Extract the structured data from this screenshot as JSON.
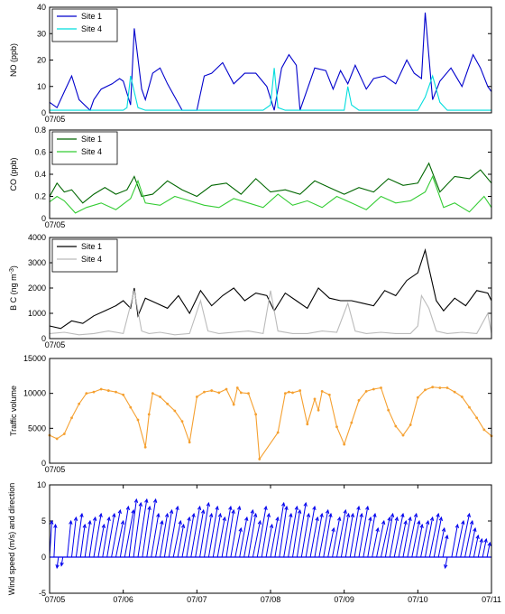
{
  "chart_data": [
    {
      "type": "line",
      "ylabel": "NO (ppb)",
      "ylim": [
        0,
        40
      ],
      "yticks": [
        "0",
        "10",
        "20",
        "30",
        "40"
      ],
      "xlim": [
        0,
        6
      ],
      "xticks": [
        {
          "x": 0,
          "label": "07/05"
        }
      ],
      "legend": {
        "placement": "top-left"
      },
      "series": [
        {
          "name": "Site 1",
          "color": "#0000cc",
          "x": [
            0,
            0.1,
            0.2,
            0.3,
            0.4,
            0.55,
            0.6,
            0.7,
            0.85,
            0.95,
            1,
            1.1,
            1.15,
            1.25,
            1.3,
            1.4,
            1.5,
            1.6,
            1.8,
            2.0,
            2.1,
            2.2,
            2.35,
            2.5,
            2.65,
            2.8,
            2.95,
            3.05,
            3.15,
            3.25,
            3.35,
            3.4,
            3.6,
            3.75,
            3.85,
            3.95,
            4.05,
            4.15,
            4.3,
            4.4,
            4.55,
            4.7,
            4.85,
            4.95,
            5.05,
            5.1,
            5.2,
            5.3,
            5.45,
            5.6,
            5.75,
            5.85,
            5.95,
            6.0
          ],
          "y": [
            4,
            2,
            8,
            14,
            5,
            1,
            5,
            9,
            11,
            13,
            12,
            3,
            32,
            9,
            5,
            15,
            17,
            11,
            1,
            1,
            14,
            15,
            19,
            11,
            15,
            15,
            10,
            1,
            17,
            22,
            18,
            1,
            17,
            16,
            9,
            16,
            11,
            18,
            9,
            13,
            14,
            11,
            20,
            15,
            13,
            38,
            5,
            12,
            17,
            10,
            22,
            17,
            10,
            8
          ]
        },
        {
          "name": "Site 4",
          "color": "#00dddd",
          "x": [
            0,
            0.8,
            1.0,
            1.05,
            1.1,
            1.2,
            1.3,
            1.5,
            2.0,
            2.9,
            3.0,
            3.05,
            3.1,
            3.2,
            3.3,
            4.0,
            4.05,
            4.1,
            4.2,
            4.3,
            4.5,
            5.0,
            5.1,
            5.2,
            5.3,
            5.4,
            6.0
          ],
          "y": [
            1,
            1,
            1,
            2,
            14,
            2,
            1,
            1,
            1,
            1,
            3,
            17,
            2,
            1,
            1,
            1,
            10,
            3,
            1,
            1,
            1,
            1,
            6,
            14,
            4,
            1,
            1
          ]
        }
      ]
    },
    {
      "type": "line",
      "ylabel": "CO (ppb)",
      "ylim": [
        0,
        0.8
      ],
      "yticks": [
        "0",
        "0.2",
        "0.4",
        "0.6",
        "0.8"
      ],
      "xlim": [
        0,
        6
      ],
      "xticks": [
        {
          "x": 0,
          "label": "07/05"
        }
      ],
      "legend": {
        "placement": "top-left"
      },
      "series": [
        {
          "name": "Site 1",
          "color": "#006600",
          "x": [
            0,
            0.1,
            0.2,
            0.3,
            0.45,
            0.6,
            0.75,
            0.9,
            1.05,
            1.15,
            1.25,
            1.4,
            1.6,
            1.8,
            2.0,
            2.2,
            2.4,
            2.6,
            2.8,
            3.0,
            3.2,
            3.4,
            3.6,
            3.8,
            4.0,
            4.2,
            4.4,
            4.6,
            4.8,
            5.0,
            5.15,
            5.3,
            5.5,
            5.7,
            5.85,
            6.0
          ],
          "y": [
            0.2,
            0.32,
            0.24,
            0.26,
            0.14,
            0.22,
            0.28,
            0.22,
            0.26,
            0.38,
            0.2,
            0.22,
            0.34,
            0.26,
            0.2,
            0.3,
            0.32,
            0.22,
            0.36,
            0.24,
            0.26,
            0.22,
            0.34,
            0.28,
            0.22,
            0.28,
            0.24,
            0.36,
            0.3,
            0.32,
            0.5,
            0.24,
            0.38,
            0.36,
            0.44,
            0.32
          ]
        },
        {
          "name": "Site 4",
          "color": "#33cc33",
          "x": [
            0,
            0.1,
            0.2,
            0.35,
            0.5,
            0.7,
            0.9,
            1.1,
            1.2,
            1.3,
            1.5,
            1.7,
            1.9,
            2.1,
            2.3,
            2.5,
            2.7,
            2.9,
            3.1,
            3.3,
            3.5,
            3.7,
            3.9,
            4.1,
            4.3,
            4.5,
            4.7,
            4.9,
            5.1,
            5.2,
            5.35,
            5.5,
            5.7,
            5.9,
            6.0
          ],
          "y": [
            0.15,
            0.2,
            0.16,
            0.05,
            0.1,
            0.14,
            0.08,
            0.18,
            0.34,
            0.14,
            0.12,
            0.2,
            0.16,
            0.12,
            0.1,
            0.18,
            0.14,
            0.1,
            0.22,
            0.12,
            0.16,
            0.1,
            0.2,
            0.14,
            0.08,
            0.2,
            0.14,
            0.16,
            0.24,
            0.38,
            0.1,
            0.14,
            0.06,
            0.2,
            0.1
          ]
        }
      ]
    },
    {
      "type": "line",
      "ylabel": "B C (ng m",
      "ylabel_sup": "-3",
      "ylabel_end": ")",
      "ylim": [
        0,
        4000
      ],
      "yticks": [
        "0",
        "1000",
        "2000",
        "3000",
        "4000"
      ],
      "xlim": [
        0,
        6
      ],
      "xticks": [
        {
          "x": 0,
          "label": "07/05"
        }
      ],
      "legend": {
        "placement": "top-left"
      },
      "series": [
        {
          "name": "Site 1",
          "color": "#000000",
          "x": [
            0,
            0.15,
            0.3,
            0.45,
            0.6,
            0.75,
            0.9,
            1.0,
            1.1,
            1.15,
            1.2,
            1.3,
            1.45,
            1.6,
            1.75,
            1.9,
            2.05,
            2.2,
            2.35,
            2.5,
            2.65,
            2.8,
            2.95,
            3.05,
            3.2,
            3.35,
            3.5,
            3.65,
            3.8,
            3.95,
            4.1,
            4.25,
            4.4,
            4.55,
            4.7,
            4.85,
            5.0,
            5.1,
            5.15,
            5.25,
            5.35,
            5.5,
            5.65,
            5.8,
            5.95,
            6.0
          ],
          "y": [
            500,
            400,
            700,
            600,
            900,
            1100,
            1300,
            1500,
            1200,
            2000,
            900,
            1600,
            1400,
            1200,
            1700,
            1000,
            1900,
            1300,
            1700,
            2000,
            1500,
            1800,
            1700,
            1100,
            1800,
            1500,
            1200,
            2000,
            1600,
            1500,
            1500,
            1400,
            1300,
            1900,
            1700,
            2300,
            2600,
            3500,
            2800,
            1500,
            1100,
            1600,
            1300,
            1900,
            1800,
            1500
          ]
        },
        {
          "name": "Site 4",
          "color": "#bbbbbb",
          "x": [
            0,
            0.2,
            0.4,
            0.6,
            0.8,
            1.0,
            1.15,
            1.25,
            1.35,
            1.5,
            1.7,
            1.9,
            2.05,
            2.15,
            2.3,
            2.5,
            2.7,
            2.9,
            3.0,
            3.1,
            3.3,
            3.5,
            3.7,
            3.9,
            4.05,
            4.15,
            4.3,
            4.5,
            4.7,
            4.9,
            5.0,
            5.05,
            5.15,
            5.25,
            5.4,
            5.6,
            5.8,
            5.95,
            6.0
          ],
          "y": [
            200,
            250,
            150,
            200,
            300,
            200,
            1900,
            300,
            200,
            250,
            150,
            200,
            1500,
            300,
            200,
            250,
            300,
            200,
            1900,
            300,
            200,
            200,
            300,
            250,
            1400,
            300,
            200,
            250,
            200,
            200,
            500,
            1700,
            1200,
            300,
            200,
            250,
            200,
            1000,
            200
          ]
        }
      ]
    },
    {
      "type": "line",
      "ylabel": "Traffic volume",
      "ylim": [
        0,
        15000
      ],
      "yticks": [
        "0",
        "5000",
        "10000",
        "15000"
      ],
      "xlim": [
        0,
        6
      ],
      "xticks": [
        {
          "x": 0,
          "label": "07/05"
        }
      ],
      "series": [
        {
          "name": "",
          "color": "#f5a030",
          "x": [
            0,
            0.1,
            0.2,
            0.3,
            0.4,
            0.5,
            0.6,
            0.7,
            0.8,
            0.9,
            1.0,
            1.1,
            1.2,
            1.3,
            1.35,
            1.4,
            1.5,
            1.6,
            1.7,
            1.8,
            1.9,
            2.0,
            2.1,
            2.2,
            2.3,
            2.4,
            2.5,
            2.55,
            2.6,
            2.7,
            2.8,
            2.85,
            3.1,
            3.2,
            3.25,
            3.3,
            3.4,
            3.5,
            3.6,
            3.65,
            3.7,
            3.8,
            3.9,
            4.0,
            4.1,
            4.2,
            4.3,
            4.4,
            4.5,
            4.6,
            4.7,
            4.8,
            4.9,
            5.0,
            5.1,
            5.2,
            5.3,
            5.4,
            5.5,
            5.6,
            5.7,
            5.8,
            5.9,
            6.0
          ],
          "y": [
            4000,
            3500,
            4200,
            6500,
            8500,
            10000,
            10200,
            10600,
            10400,
            10200,
            9800,
            8000,
            6200,
            2300,
            7000,
            10000,
            9500,
            8500,
            7500,
            6000,
            3000,
            9500,
            10200,
            10400,
            10100,
            10600,
            8400,
            10800,
            10100,
            10000,
            7000,
            600,
            4400,
            10000,
            10200,
            10100,
            10400,
            5600,
            9200,
            7600,
            10300,
            9800,
            5200,
            2700,
            5800,
            9000,
            10300,
            10600,
            10800,
            7600,
            5300,
            4000,
            5500,
            9400,
            10500,
            10900,
            10800,
            10800,
            10200,
            9500,
            8000,
            6500,
            4800,
            3900
          ]
        }
      ]
    },
    {
      "type": "quiver",
      "ylabel": "Wind speed (m/s) and direction",
      "ylim": [
        -5,
        10
      ],
      "yticks": [
        "-5",
        "0",
        "5",
        "10"
      ],
      "xlim": [
        0,
        6
      ],
      "xticks": [
        {
          "x": 0,
          "label": "07/05"
        },
        {
          "x": 1,
          "label": "07/06"
        },
        {
          "x": 2,
          "label": "07/07"
        },
        {
          "x": 3,
          "label": "07/08"
        },
        {
          "x": 4,
          "label": "07/09"
        },
        {
          "x": 5,
          "label": "07/10"
        },
        {
          "x": 6,
          "label": "07/11"
        }
      ],
      "series": [
        {
          "name": "",
          "color": "#0000ee",
          "x": [
            0.0,
            0.06,
            0.12,
            0.18,
            0.24,
            0.3,
            0.36,
            0.42,
            0.48,
            0.54,
            0.6,
            0.66,
            0.72,
            0.78,
            0.84,
            0.9,
            0.96,
            1.02,
            1.08,
            1.14,
            1.2,
            1.26,
            1.32,
            1.38,
            1.44,
            1.5,
            1.56,
            1.62,
            1.68,
            1.74,
            1.8,
            1.86,
            1.92,
            1.98,
            2.04,
            2.1,
            2.16,
            2.22,
            2.28,
            2.34,
            2.4,
            2.46,
            2.52,
            2.58,
            2.64,
            2.7,
            2.76,
            2.82,
            2.88,
            2.94,
            3.0,
            3.06,
            3.12,
            3.18,
            3.24,
            3.3,
            3.36,
            3.42,
            3.48,
            3.54,
            3.6,
            3.66,
            3.72,
            3.78,
            3.84,
            3.9,
            3.96,
            4.02,
            4.08,
            4.14,
            4.2,
            4.26,
            4.32,
            4.38,
            4.44,
            4.5,
            4.56,
            4.62,
            4.68,
            4.74,
            4.8,
            4.86,
            4.92,
            4.98,
            5.04,
            5.1,
            5.16,
            5.22,
            5.28,
            5.34,
            5.4,
            5.46,
            5.52,
            5.58,
            5.64,
            5.7,
            5.76,
            5.82,
            5.88,
            5.94
          ],
          "u": [
            0.03,
            0.02,
            -0.02,
            -0.02,
            0.05,
            0.06,
            0.08,
            0.06,
            0.07,
            0.08,
            0.1,
            0.08,
            0.09,
            0.1,
            0.12,
            0.1,
            0.11,
            0.12,
            0.1,
            0.1,
            0.12,
            0.1,
            0.12,
            0.1,
            0.09,
            0.1,
            0.1,
            0.12,
            0.1,
            0.08,
            0.1,
            0.1,
            0.12,
            0.11,
            0.12,
            0.1,
            0.12,
            0.1,
            0.1,
            0.12,
            0.1,
            0.12,
            0.08,
            0.1,
            0.12,
            0.1,
            0.1,
            0.12,
            0.1,
            0.08,
            0.1,
            0.12,
            0.1,
            0.1,
            0.12,
            0.1,
            0.12,
            0.1,
            0.12,
            0.1,
            0.1,
            0.12,
            0.1,
            0.08,
            0.1,
            0.12,
            0.1,
            0.1,
            0.12,
            0.1,
            0.12,
            0.1,
            0.1,
            0.08,
            0.1,
            0.12,
            0.1,
            0.1,
            0.12,
            0.1,
            0.1,
            0.12,
            0.1,
            0.08,
            0.1,
            0.1,
            0.12,
            0.1,
            0.08,
            0.06,
            -0.03,
            0.08,
            0.1,
            0.12,
            0.1,
            0.08,
            0.06,
            0.05,
            0.05,
            0.04
          ],
          "v": [
            5,
            4.5,
            -1.5,
            -1.2,
            5,
            5.5,
            6,
            4.5,
            5,
            5.5,
            6,
            4.5,
            5.5,
            6,
            6.5,
            5,
            7,
            6.5,
            8,
            7.5,
            8,
            7,
            8,
            6,
            5,
            6,
            6.5,
            7,
            5,
            4.5,
            5.5,
            6,
            7,
            6.5,
            7.5,
            6,
            7,
            6,
            5.5,
            7,
            6.5,
            7,
            4,
            5.5,
            6.5,
            6,
            5,
            7,
            6,
            4.5,
            5.5,
            7.5,
            7,
            6,
            7,
            6.5,
            7.5,
            6,
            7,
            5.5,
            6,
            6.5,
            6,
            4,
            5.5,
            6.5,
            6,
            6,
            7,
            6,
            7,
            5.5,
            6,
            4,
            5,
            5.5,
            6,
            5.5,
            6,
            5,
            5.5,
            6,
            5,
            4.5,
            5,
            5.5,
            6,
            5.5,
            4,
            3,
            -1.5,
            4.5,
            5,
            6,
            5,
            4,
            3,
            2.5,
            2.5,
            2
          ]
        }
      ]
    }
  ]
}
